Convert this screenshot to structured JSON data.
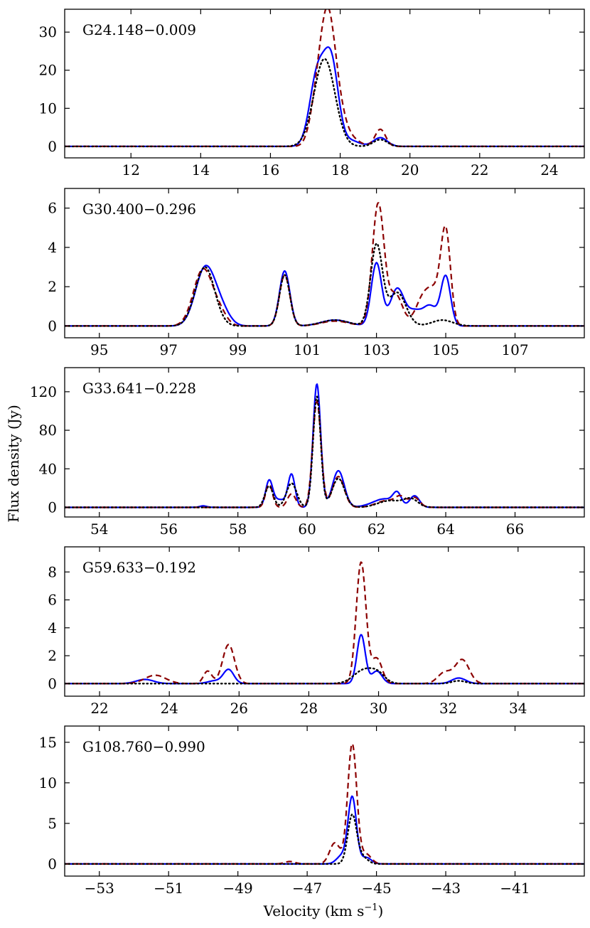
{
  "figure": {
    "ylabel": "Flux density (Jy)",
    "xlabel": "Velocity (km s",
    "xlabel_exp": "−1",
    "xlabel_close": ")"
  },
  "colors": {
    "solid": "#0000ff",
    "dashed": "#8b0000",
    "dotted": "#000000"
  },
  "chart_data": [
    {
      "type": "line",
      "label": "G24.148−0.009",
      "xlim": [
        10.1,
        25.0
      ],
      "ylim": [
        -3,
        36
      ],
      "xticks": [
        12,
        14,
        16,
        18,
        20,
        22,
        24
      ],
      "xtick_labels": [
        "12",
        "14",
        "16",
        "18",
        "20",
        "22",
        "24"
      ],
      "yticks": [
        0,
        10,
        20,
        30
      ],
      "ytick_labels": [
        "0",
        "10",
        "20",
        "30"
      ],
      "series": [
        {
          "name": "solid",
          "style": "solid",
          "baseline": 0,
          "peaks": [
            [
              17.35,
              19,
              0.22
            ],
            [
              17.75,
              21,
              0.2
            ],
            [
              19.15,
              2.3,
              0.2
            ],
            [
              18.3,
              1.5,
              0.25
            ]
          ]
        },
        {
          "name": "dashed",
          "style": "dashed",
          "baseline": 0,
          "peaks": [
            [
              17.65,
              30,
              0.2
            ],
            [
              17.35,
              12,
              0.2
            ],
            [
              17.95,
              8,
              0.2
            ],
            [
              19.15,
              4.5,
              0.15
            ],
            [
              18.3,
              2,
              0.25
            ]
          ]
        },
        {
          "name": "dotted",
          "style": "dotted",
          "baseline": 0,
          "peaks": [
            [
              17.55,
              23,
              0.3
            ],
            [
              19.15,
              1.8,
              0.2
            ]
          ]
        }
      ]
    },
    {
      "type": "line",
      "label": "G30.400−0.296",
      "xlim": [
        94.0,
        109.0
      ],
      "ylim": [
        -0.6,
        7.0
      ],
      "xticks": [
        95,
        97,
        99,
        101,
        103,
        105,
        107
      ],
      "xtick_labels": [
        "95",
        "97",
        "99",
        "101",
        "103",
        "105",
        "107"
      ],
      "yticks": [
        0,
        2,
        4,
        6
      ],
      "ytick_labels": [
        "0",
        "2",
        "4",
        "6"
      ],
      "series": [
        {
          "name": "solid",
          "style": "solid",
          "baseline": 0,
          "peaks": [
            [
              98.05,
              2.9,
              0.28
            ],
            [
              98.5,
              0.8,
              0.25
            ],
            [
              100.35,
              2.8,
              0.15
            ],
            [
              101.8,
              0.3,
              0.4
            ],
            [
              103.0,
              3.2,
              0.15
            ],
            [
              103.6,
              1.9,
              0.2
            ],
            [
              104.1,
              0.7,
              0.2
            ],
            [
              104.55,
              1.0,
              0.2
            ],
            [
              105.0,
              2.5,
              0.14
            ]
          ]
        },
        {
          "name": "dashed",
          "style": "dashed",
          "baseline": 0,
          "peaks": [
            [
              98.0,
              2.9,
              0.28
            ],
            [
              98.5,
              0.5,
              0.2
            ],
            [
              100.35,
              2.6,
              0.15
            ],
            [
              101.8,
              0.25,
              0.4
            ],
            [
              103.05,
              6.2,
              0.17
            ],
            [
              103.55,
              1.6,
              0.2
            ],
            [
              104.35,
              1.4,
              0.22
            ],
            [
              105.0,
              4.6,
              0.14
            ],
            [
              104.7,
              1.4,
              0.2
            ]
          ]
        },
        {
          "name": "dotted",
          "style": "dotted",
          "baseline": 0,
          "peaks": [
            [
              98.05,
              3.0,
              0.28
            ],
            [
              100.35,
              2.6,
              0.15
            ],
            [
              101.8,
              0.3,
              0.4
            ],
            [
              103.0,
              4.1,
              0.17
            ],
            [
              103.6,
              1.7,
              0.25
            ],
            [
              104.9,
              0.3,
              0.3
            ]
          ]
        }
      ]
    },
    {
      "type": "line",
      "label": "G33.641−0.228",
      "xlim": [
        53.0,
        68.0
      ],
      "ylim": [
        -10,
        145
      ],
      "xticks": [
        54,
        56,
        58,
        60,
        62,
        64,
        66
      ],
      "xtick_labels": [
        "54",
        "56",
        "58",
        "60",
        "62",
        "64",
        "66"
      ],
      "yticks": [
        0,
        40,
        80,
        120
      ],
      "ytick_labels": [
        "0",
        "40",
        "80",
        "120"
      ],
      "series": [
        {
          "name": "solid",
          "style": "solid",
          "baseline": 0,
          "peaks": [
            [
              58.9,
              26,
              0.1
            ],
            [
              59.2,
              8,
              0.2
            ],
            [
              59.55,
              33,
              0.1
            ],
            [
              60.28,
              128,
              0.11
            ],
            [
              60.9,
              38,
              0.17
            ],
            [
              62.0,
              4,
              0.3
            ],
            [
              62.6,
              13,
              0.12
            ],
            [
              62.3,
              6,
              0.25
            ],
            [
              63.1,
              12,
              0.14
            ],
            [
              57.0,
              1.5,
              0.1
            ]
          ]
        },
        {
          "name": "dashed",
          "style": "dashed",
          "baseline": 0,
          "peaks": [
            [
              58.9,
              24,
              0.1
            ],
            [
              59.55,
              14,
              0.12
            ],
            [
              60.28,
              110,
              0.12
            ],
            [
              60.9,
              32,
              0.17
            ],
            [
              62.3,
              7,
              0.3
            ],
            [
              62.7,
              9,
              0.15
            ],
            [
              63.1,
              10,
              0.15
            ]
          ]
        },
        {
          "name": "dotted",
          "style": "dotted",
          "baseline": 0,
          "peaks": [
            [
              58.9,
              22,
              0.12
            ],
            [
              59.55,
              25,
              0.15
            ],
            [
              60.28,
              115,
              0.11
            ],
            [
              60.9,
              30,
              0.18
            ],
            [
              62.4,
              7,
              0.35
            ],
            [
              63.0,
              8,
              0.2
            ]
          ]
        }
      ]
    },
    {
      "type": "line",
      "label": "G59.633−0.192",
      "xlim": [
        21.0,
        35.9
      ],
      "ylim": [
        -0.9,
        9.8
      ],
      "xticks": [
        22,
        24,
        26,
        28,
        30,
        32,
        34
      ],
      "xtick_labels": [
        "22",
        "24",
        "26",
        "28",
        "30",
        "32",
        "34"
      ],
      "yticks": [
        0,
        2,
        4,
        6,
        8
      ],
      "ytick_labels": [
        "0",
        "2",
        "4",
        "6",
        "8"
      ],
      "series": [
        {
          "name": "solid",
          "style": "solid",
          "baseline": 0,
          "peaks": [
            [
              23.3,
              0.3,
              0.25
            ],
            [
              25.7,
              1.0,
              0.15
            ],
            [
              29.5,
              3.5,
              0.12
            ],
            [
              29.95,
              0.9,
              0.15
            ],
            [
              32.3,
              0.4,
              0.2
            ],
            [
              25.3,
              0.2,
              0.2
            ]
          ]
        },
        {
          "name": "dashed",
          "style": "dashed",
          "baseline": 0,
          "peaks": [
            [
              23.6,
              0.6,
              0.3
            ],
            [
              25.1,
              0.9,
              0.12
            ],
            [
              25.7,
              2.8,
              0.17
            ],
            [
              29.5,
              8.7,
              0.14
            ],
            [
              29.95,
              1.8,
              0.15
            ],
            [
              31.9,
              0.8,
              0.2
            ],
            [
              32.4,
              1.7,
              0.2
            ]
          ]
        },
        {
          "name": "dotted",
          "style": "dotted",
          "baseline": 0,
          "peaks": [
            [
              29.6,
              1.0,
              0.3
            ],
            [
              30.0,
              0.5,
              0.2
            ],
            [
              32.3,
              0.2,
              0.2
            ]
          ]
        }
      ]
    },
    {
      "type": "line",
      "label": "G108.760−0.990",
      "xlim": [
        -54.0,
        -39.0
      ],
      "ylim": [
        -1.5,
        17.0
      ],
      "xticks": [
        -53,
        -51,
        -49,
        -47,
        -45,
        -43,
        -41
      ],
      "xtick_labels": [
        "−53",
        "−51",
        "−49",
        "−47",
        "−45",
        "−43",
        "−41"
      ],
      "yticks": [
        0,
        5,
        10,
        15
      ],
      "ytick_labels": [
        "0",
        "5",
        "10",
        "15"
      ],
      "series": [
        {
          "name": "solid",
          "style": "solid",
          "baseline": 0,
          "peaks": [
            [
              -45.7,
              8.2,
              0.12
            ],
            [
              -46.0,
              1.0,
              0.15
            ],
            [
              -45.3,
              0.8,
              0.15
            ]
          ]
        },
        {
          "name": "dashed",
          "style": "dashed",
          "baseline": 0,
          "peaks": [
            [
              -45.7,
              14.8,
              0.13
            ],
            [
              -46.2,
              2.6,
              0.15
            ],
            [
              -45.3,
              1.2,
              0.15
            ],
            [
              -47.5,
              0.3,
              0.15
            ]
          ]
        },
        {
          "name": "dotted",
          "style": "dotted",
          "baseline": 0,
          "peaks": [
            [
              -45.7,
              6.0,
              0.13
            ],
            [
              -45.4,
              0.8,
              0.15
            ]
          ]
        }
      ]
    }
  ]
}
